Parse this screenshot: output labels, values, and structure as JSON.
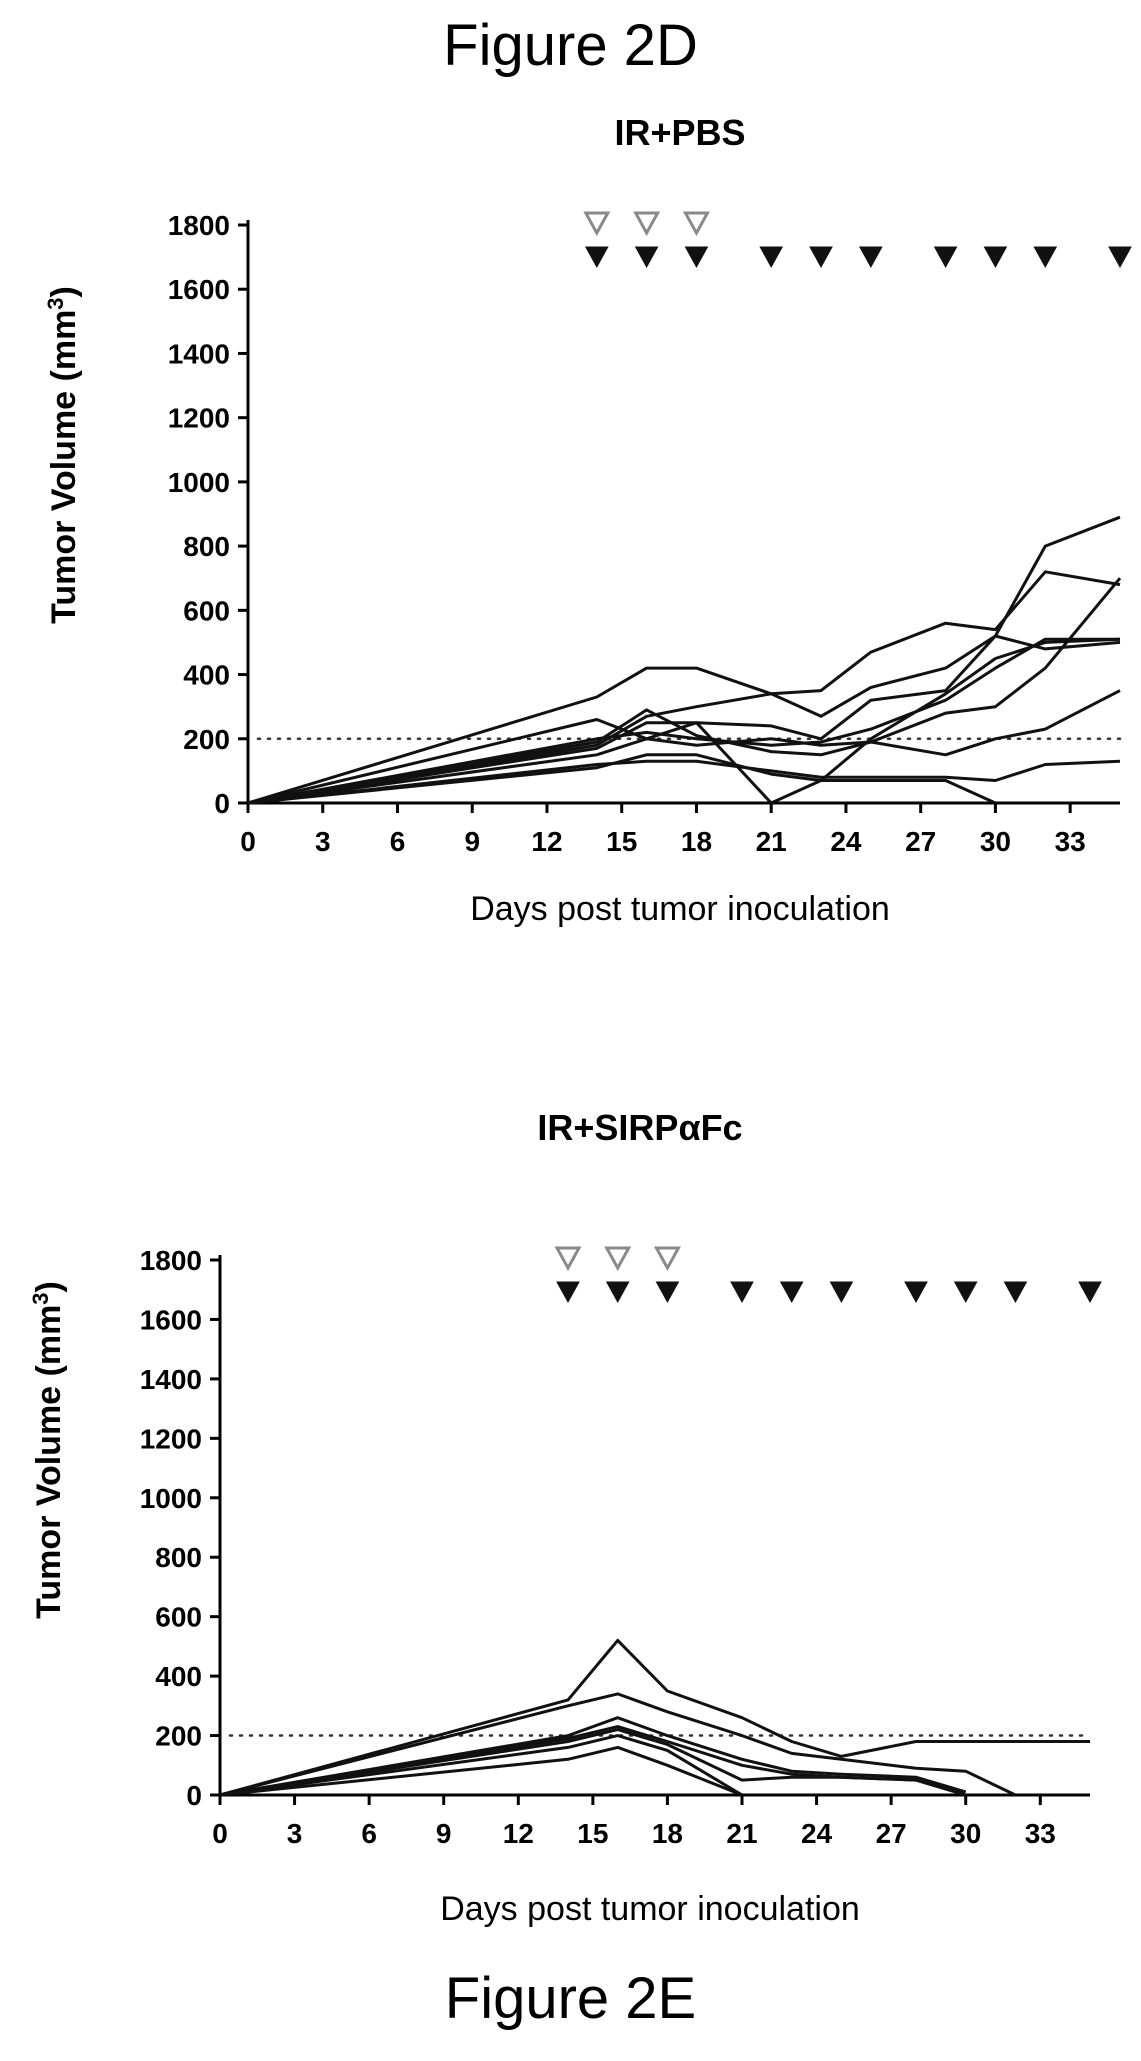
{
  "figure_labels": {
    "top": "Figure 2D",
    "bottom": "Figure 2E"
  },
  "colors": {
    "line": "#111111",
    "open_marker": "#8a8a8a",
    "filled_marker": "#111111"
  },
  "chart_data": [
    {
      "type": "line",
      "title": "IR+PBS",
      "xlabel": "Days post tumor inoculation",
      "ylabel_main": "Tumor Volume (mm",
      "ylabel_sup": "3",
      "ylabel_close": ")",
      "xlim": [
        0,
        35
      ],
      "ylim": [
        0,
        1800
      ],
      "x_ticks": [
        0,
        3,
        6,
        9,
        12,
        15,
        18,
        21,
        24,
        27,
        30,
        33
      ],
      "x_tick_labels": [
        "0",
        "3",
        "6",
        "9",
        "12",
        "15",
        "18",
        "21",
        "24",
        "27",
        "30",
        "33"
      ],
      "y_ticks": [
        0,
        200,
        400,
        600,
        800,
        1000,
        1200,
        1400,
        1600,
        1800
      ],
      "y_tick_labels": [
        "0",
        "200",
        "400",
        "600",
        "800",
        "1000",
        "1200",
        "1400",
        "1600",
        "1800"
      ],
      "threshold_y": 200,
      "open_markers_x": [
        14,
        16,
        18
      ],
      "filled_markers_x": [
        14,
        16,
        18,
        21,
        23,
        25,
        28,
        30,
        32,
        35
      ],
      "series": [
        {
          "x": [
            0,
            14,
            16,
            18,
            21,
            23,
            25,
            28,
            30,
            32,
            35
          ],
          "y": [
            0,
            330,
            420,
            420,
            340,
            270,
            360,
            420,
            520,
            800,
            890
          ]
        },
        {
          "x": [
            0,
            14,
            16,
            18,
            21,
            23,
            25,
            28,
            30,
            32,
            35
          ],
          "y": [
            0,
            180,
            270,
            300,
            340,
            350,
            470,
            560,
            540,
            720,
            680
          ]
        },
        {
          "x": [
            0,
            14,
            16,
            18,
            21,
            23,
            25,
            28,
            30,
            32,
            35
          ],
          "y": [
            0,
            260,
            200,
            250,
            240,
            200,
            320,
            350,
            520,
            480,
            500
          ]
        },
        {
          "x": [
            0,
            14,
            16,
            18,
            21,
            23,
            25,
            28,
            30,
            32,
            35
          ],
          "y": [
            0,
            200,
            220,
            200,
            180,
            190,
            230,
            320,
            420,
            510,
            510
          ]
        },
        {
          "x": [
            0,
            14,
            16,
            18,
            21,
            23,
            25,
            28,
            30,
            32,
            35
          ],
          "y": [
            0,
            190,
            290,
            210,
            160,
            150,
            190,
            280,
            300,
            420,
            700
          ]
        },
        {
          "x": [
            0,
            14,
            16,
            18,
            21,
            23,
            25,
            28,
            30,
            32,
            35
          ],
          "y": [
            0,
            150,
            200,
            180,
            200,
            180,
            190,
            150,
            200,
            230,
            350
          ]
        },
        {
          "x": [
            0,
            14,
            16,
            18,
            21,
            23,
            25,
            28,
            30,
            32,
            35
          ],
          "y": [
            0,
            120,
            130,
            130,
            100,
            80,
            80,
            80,
            70,
            120,
            130
          ]
        },
        {
          "x": [
            0,
            14,
            16,
            18,
            21,
            23,
            25,
            28,
            30,
            32,
            35
          ],
          "y": [
            0,
            170,
            250,
            250,
            0,
            70,
            200,
            340,
            450,
            500,
            510
          ]
        },
        {
          "x": [
            0,
            14,
            16,
            18,
            21,
            23,
            25,
            28,
            30
          ],
          "y": [
            0,
            110,
            150,
            150,
            90,
            70,
            70,
            70,
            0
          ]
        }
      ]
    },
    {
      "type": "line",
      "title": "IR+SIRPαFc",
      "xlabel": "Days post tumor inoculation",
      "ylabel_main": "Tumor Volume (mm",
      "ylabel_sup": "3",
      "ylabel_close": ")",
      "xlim": [
        0,
        35
      ],
      "ylim": [
        0,
        1800
      ],
      "x_ticks": [
        0,
        3,
        6,
        9,
        12,
        15,
        18,
        21,
        24,
        27,
        30,
        33
      ],
      "x_tick_labels": [
        "0",
        "3",
        "6",
        "9",
        "12",
        "15",
        "18",
        "21",
        "24",
        "27",
        "30",
        "33"
      ],
      "y_ticks": [
        0,
        200,
        400,
        600,
        800,
        1000,
        1200,
        1400,
        1600,
        1800
      ],
      "y_tick_labels": [
        "0",
        "200",
        "400",
        "600",
        "800",
        "1000",
        "1200",
        "1400",
        "1600",
        "1800"
      ],
      "threshold_y": 200,
      "open_markers_x": [
        14,
        16,
        18
      ],
      "filled_markers_x": [
        14,
        16,
        18,
        21,
        23,
        25,
        28,
        30,
        32,
        35
      ],
      "series": [
        {
          "x": [
            0,
            14,
            16,
            18,
            21,
            23,
            25,
            28,
            30,
            32,
            35
          ],
          "y": [
            0,
            320,
            520,
            350,
            260,
            180,
            130,
            180,
            180,
            180,
            180
          ]
        },
        {
          "x": [
            0,
            14,
            16,
            18,
            21,
            23,
            25,
            28,
            30,
            32
          ],
          "y": [
            0,
            300,
            340,
            280,
            200,
            140,
            120,
            90,
            80,
            0
          ]
        },
        {
          "x": [
            0,
            14,
            16,
            18,
            21,
            23,
            25,
            28,
            30
          ],
          "y": [
            0,
            200,
            260,
            200,
            120,
            80,
            70,
            60,
            10
          ]
        },
        {
          "x": [
            0,
            14,
            16,
            18,
            21,
            23,
            25,
            28,
            30
          ],
          "y": [
            0,
            190,
            230,
            180,
            100,
            70,
            60,
            50,
            0
          ]
        },
        {
          "x": [
            0,
            14,
            16,
            18,
            21,
            23,
            25,
            28,
            30
          ],
          "y": [
            0,
            180,
            220,
            170,
            50,
            60,
            60,
            50,
            0
          ]
        },
        {
          "x": [
            0,
            14,
            16,
            18,
            21
          ],
          "y": [
            0,
            160,
            200,
            150,
            0
          ]
        },
        {
          "x": [
            0,
            14,
            16,
            18,
            21
          ],
          "y": [
            0,
            120,
            160,
            100,
            0
          ]
        }
      ]
    }
  ]
}
